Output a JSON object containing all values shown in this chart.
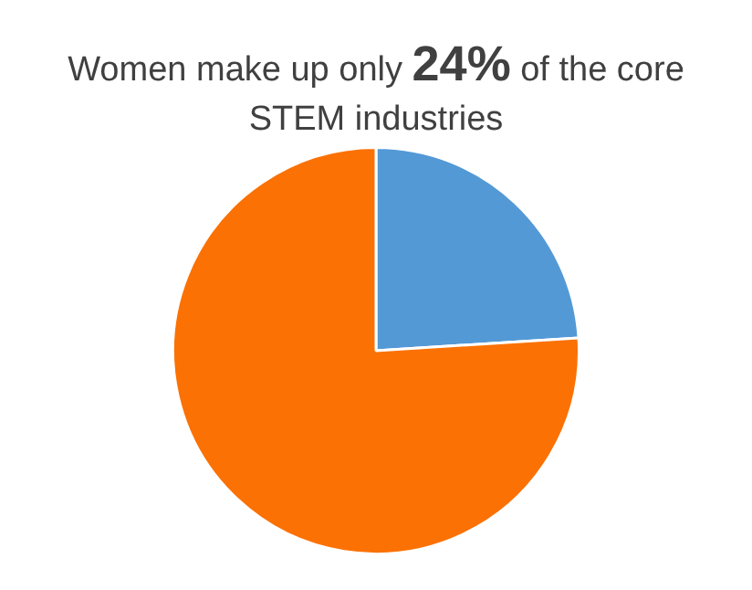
{
  "chart_data": {
    "type": "pie",
    "title": "Women make up only 24% of the core STEM industries",
    "categories": [
      null,
      null
    ],
    "values": [
      24,
      76
    ],
    "colors": [
      "#5399d6",
      "#fb7103"
    ],
    "legend": false
  }
}
